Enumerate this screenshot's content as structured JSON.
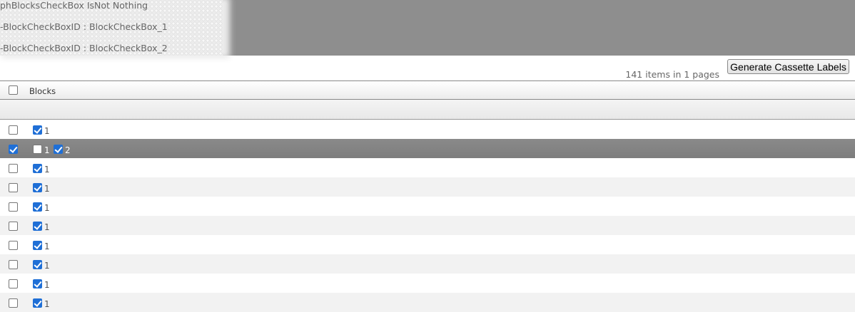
{
  "debug": {
    "lines": [
      "phBlocksCheckBox IsNot Nothing",
      "-BlockCheckBoxID : BlockCheckBox_1",
      "-BlockCheckBoxID : BlockCheckBox_2"
    ]
  },
  "toolbar": {
    "count_text": "141 items in 1 pages",
    "generate_label": "Generate Cassette Labels"
  },
  "grid": {
    "header": {
      "select_all": false,
      "blocks_label": "Blocks"
    },
    "rows": [
      {
        "selected": false,
        "blocks": [
          {
            "label": "1",
            "checked": true
          }
        ]
      },
      {
        "selected": true,
        "blocks": [
          {
            "label": "1",
            "checked": false
          },
          {
            "label": "2",
            "checked": true
          }
        ]
      },
      {
        "selected": false,
        "blocks": [
          {
            "label": "1",
            "checked": true
          }
        ]
      },
      {
        "selected": false,
        "blocks": [
          {
            "label": "1",
            "checked": true
          }
        ]
      },
      {
        "selected": false,
        "blocks": [
          {
            "label": "1",
            "checked": true
          }
        ]
      },
      {
        "selected": false,
        "blocks": [
          {
            "label": "1",
            "checked": true
          }
        ]
      },
      {
        "selected": false,
        "blocks": [
          {
            "label": "1",
            "checked": true
          }
        ]
      },
      {
        "selected": false,
        "blocks": [
          {
            "label": "1",
            "checked": true
          }
        ]
      },
      {
        "selected": false,
        "blocks": [
          {
            "label": "1",
            "checked": true
          }
        ]
      },
      {
        "selected": false,
        "blocks": [
          {
            "label": "1",
            "checked": true
          }
        ]
      }
    ]
  },
  "colors": {
    "checkbox_accent": "#1f6fd6",
    "selected_row": "#848484",
    "alt_row": "#f2f2f2"
  }
}
